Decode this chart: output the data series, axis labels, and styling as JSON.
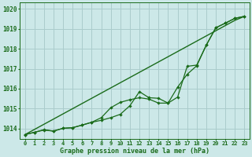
{
  "xlabel": "Graphe pression niveau de la mer (hPa)",
  "background_color": "#cce8e8",
  "grid_color": "#aacccc",
  "line_color": "#1a6b1a",
  "x_ticks": [
    0,
    1,
    2,
    3,
    4,
    5,
    6,
    7,
    8,
    9,
    10,
    11,
    12,
    13,
    14,
    15,
    16,
    17,
    18,
    19,
    20,
    21,
    22,
    23
  ],
  "ylim": [
    1013.5,
    1020.3
  ],
  "yticks": [
    1014,
    1015,
    1016,
    1017,
    1018,
    1019,
    1020
  ],
  "line_data": [
    1013.7,
    1013.82,
    1013.95,
    1013.88,
    1014.02,
    1014.05,
    1014.18,
    1014.32,
    1014.42,
    1014.55,
    1014.72,
    1015.15,
    1015.85,
    1015.55,
    1015.52,
    1015.28,
    1016.08,
    1016.72,
    1017.15,
    1018.18,
    1019.05,
    1019.28,
    1019.52,
    1019.62
  ],
  "line_smooth1": [
    1013.7,
    1013.82,
    1013.93,
    1013.88,
    1014.02,
    1014.05,
    1014.18,
    1014.32,
    1014.55,
    1015.05,
    1015.32,
    1015.45,
    1015.55,
    1015.48,
    1015.28,
    1015.28,
    1015.58,
    1017.12,
    1017.18,
    1018.18,
    1019.05,
    1019.28,
    1019.52,
    1019.62
  ],
  "line_straight": [
    1013.7,
    1013.96,
    1014.22,
    1014.48,
    1014.74,
    1015.0,
    1015.26,
    1015.52,
    1015.78,
    1016.04,
    1016.3,
    1016.56,
    1016.82,
    1017.08,
    1017.34,
    1017.6,
    1017.86,
    1018.12,
    1018.38,
    1018.64,
    1018.9,
    1019.16,
    1019.42,
    1019.62
  ]
}
